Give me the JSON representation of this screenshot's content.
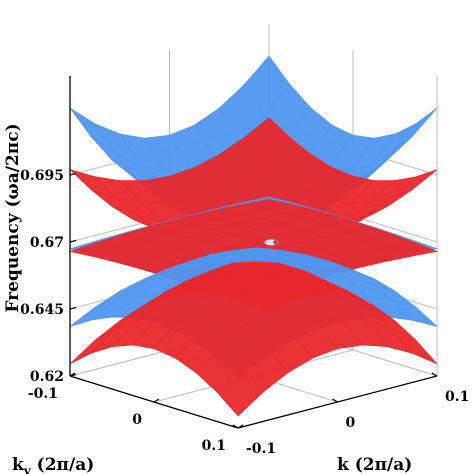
{
  "chart_data": {
    "type": "surface3d",
    "title": "",
    "zlabel": "Frequency (ωa/2πc)",
    "xlabel": "k (2π/a)",
    "ylabel": "k (2π/a)",
    "ylabel_subscript": "y",
    "zlim": [
      0.62,
      0.72
    ],
    "xlim": [
      -0.1,
      0.1
    ],
    "ylim": [
      -0.1,
      0.1
    ],
    "z_ticks": [
      "0.62",
      "0.645",
      "0.67",
      "0.695"
    ],
    "y_ticks": [
      "-0.1",
      "0",
      "0.1"
    ],
    "x_ticks": [
      "-0.1",
      "0",
      "0.1"
    ],
    "grid": true,
    "colors": {
      "blue_band": "#4f96f0",
      "red_band": "#e8282c",
      "grid": "#bfbfbf"
    },
    "bands": [
      {
        "color": "blue",
        "center": 0.671,
        "corner": 0.72
      },
      {
        "color": "red",
        "center": 0.667,
        "corner": 0.697
      },
      {
        "color": "blue",
        "center": 0.6695,
        "corner": 0.6675
      },
      {
        "color": "red",
        "center": 0.6705,
        "corner": 0.6665
      },
      {
        "color": "blue",
        "center": 0.6665,
        "corner": 0.6385
      },
      {
        "color": "red",
        "center": 0.6625,
        "corner": 0.6245
      }
    ]
  }
}
